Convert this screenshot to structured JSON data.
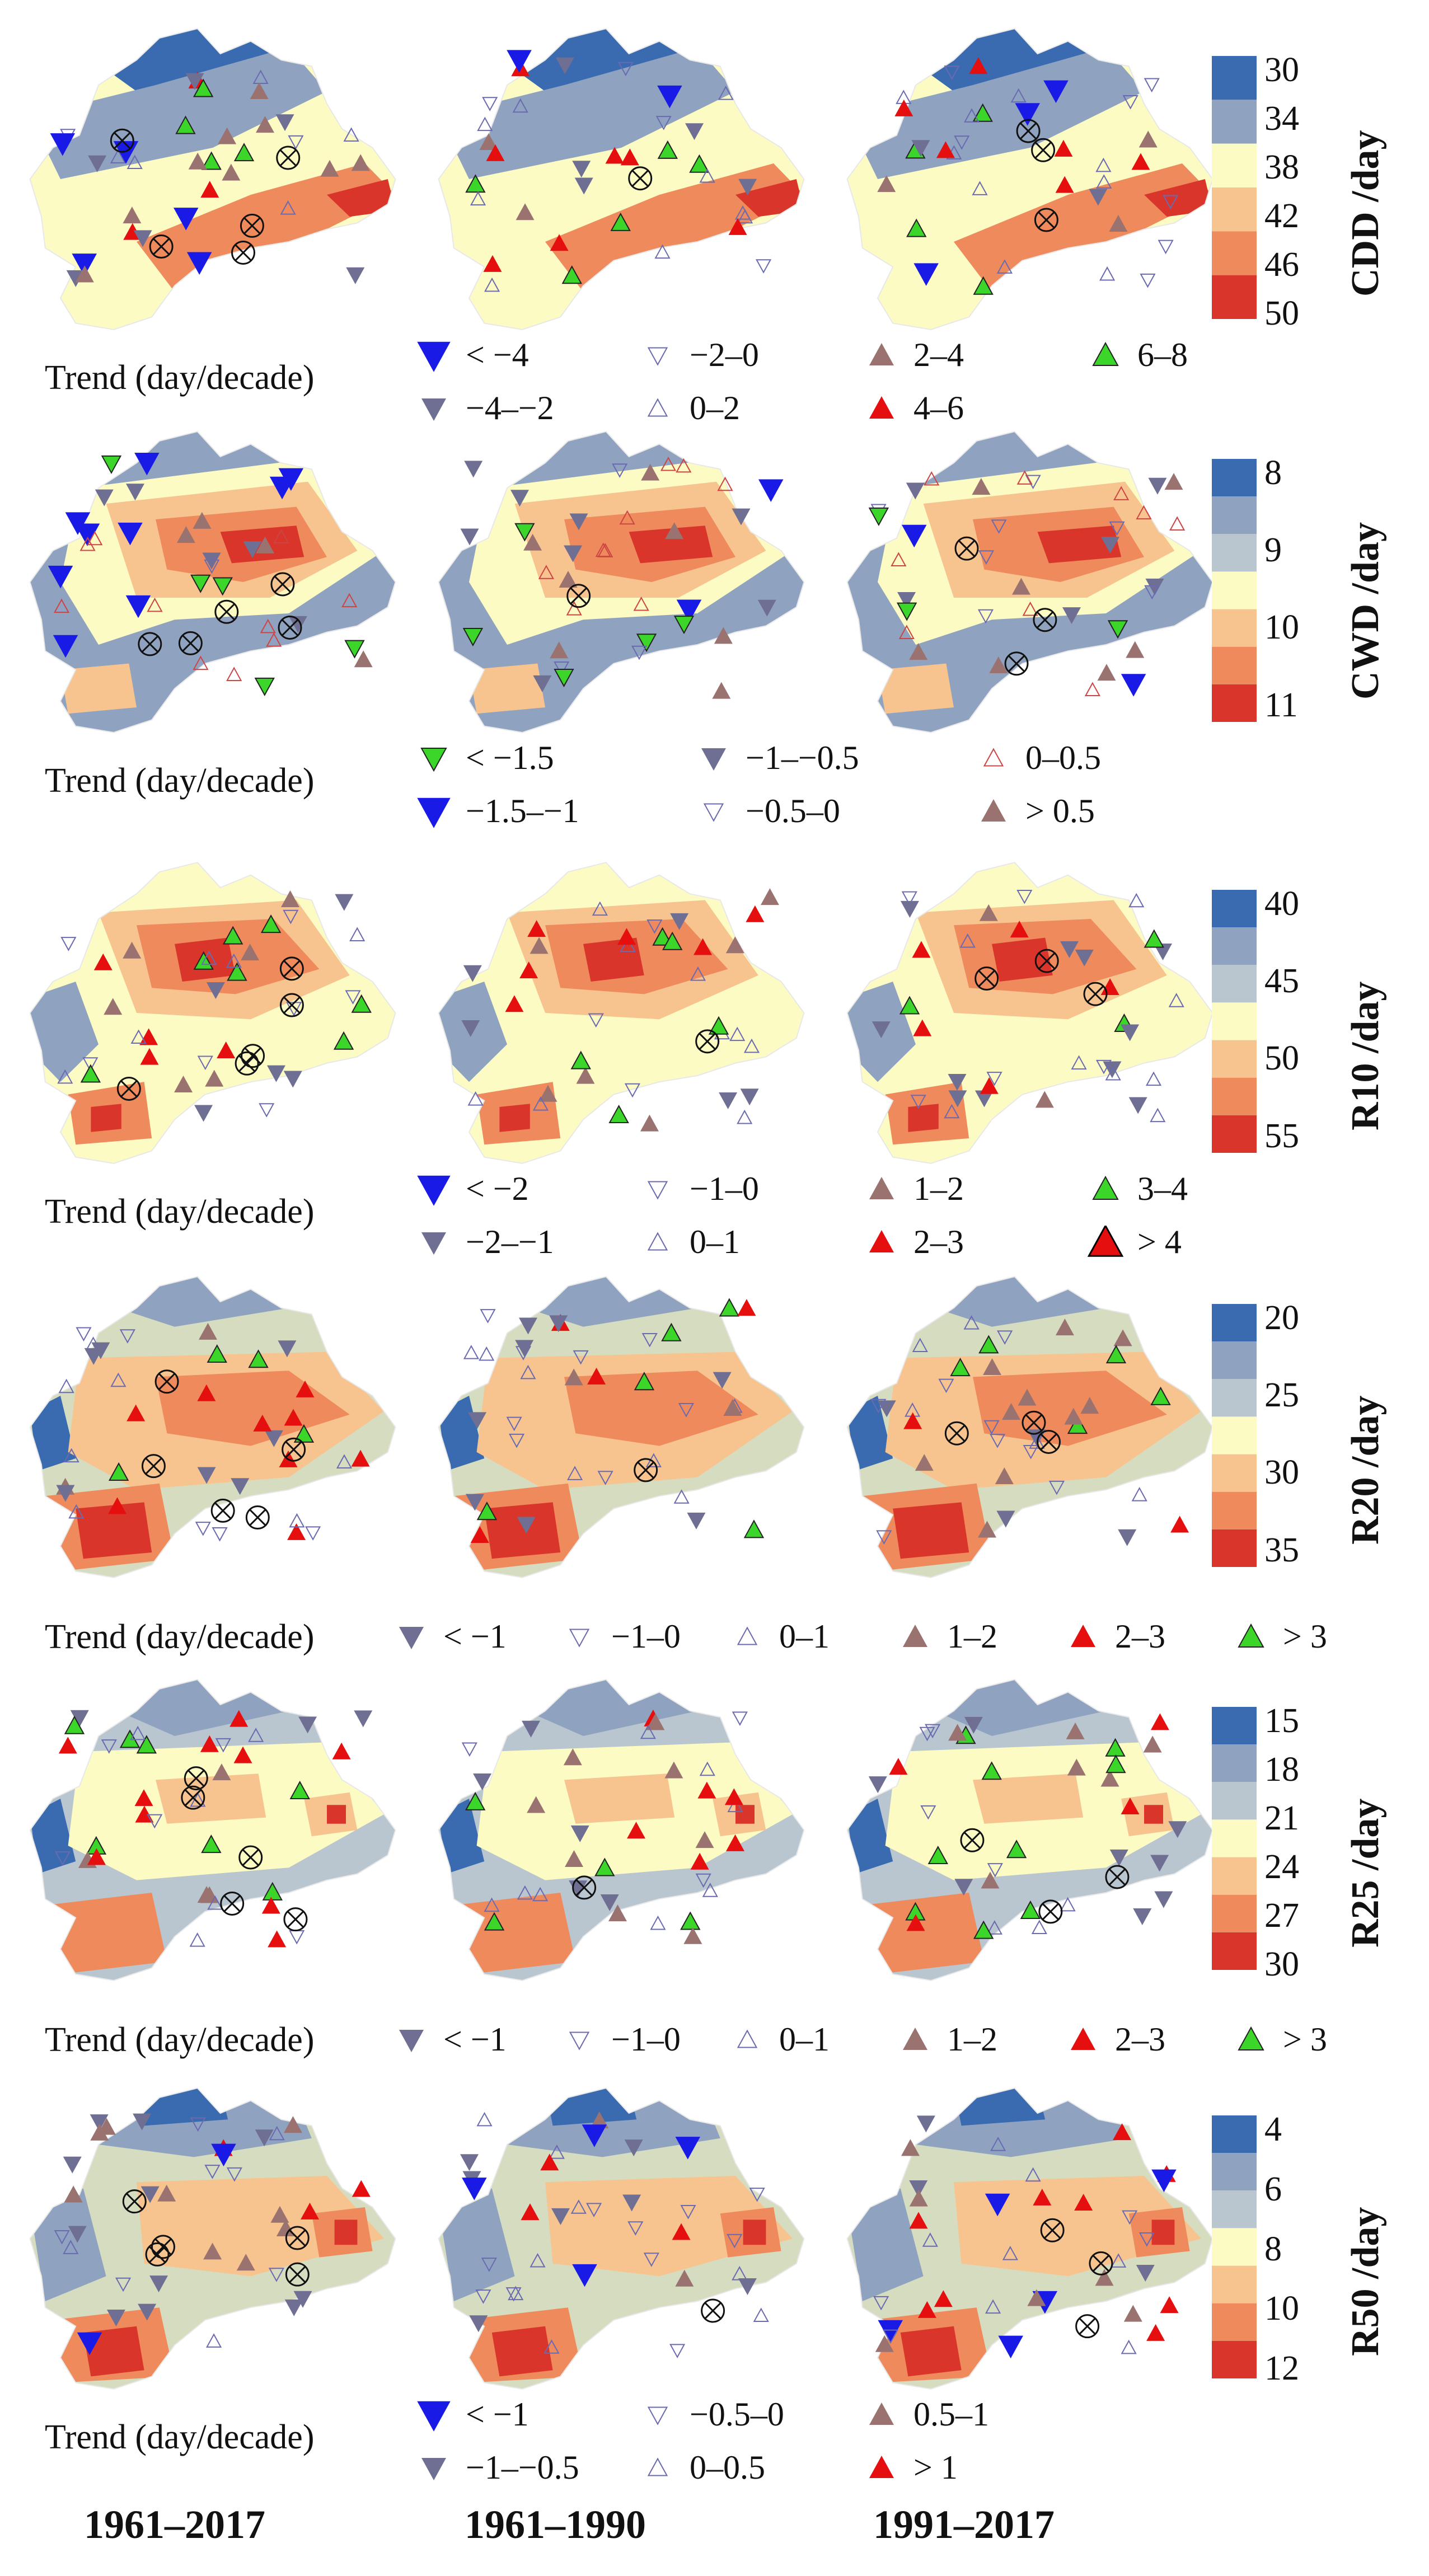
{
  "rows": [
    {
      "index": "CDD /day",
      "colorbar_ticks": [
        "30",
        "34",
        "38",
        "42",
        "46",
        "50"
      ],
      "trend_label": "Trend (day/decade)",
      "legend": [
        {
          "symbol": "big-down-blue",
          "label": "< −4"
        },
        {
          "symbol": "small-down-open",
          "label": "−2–0"
        },
        {
          "symbol": "up-brown",
          "label": "2–4"
        },
        {
          "symbol": "up-green",
          "label": "6–8"
        },
        {
          "symbol": "down-grey",
          "label": "−4–−2"
        },
        {
          "symbol": "small-up-open",
          "label": "0–2"
        },
        {
          "symbol": "up-red",
          "label": "4–6"
        }
      ]
    },
    {
      "index": "CWD /day",
      "colorbar_ticks": [
        "8",
        "9",
        "10",
        "11"
      ],
      "trend_label": "Trend (day/decade)",
      "legend": [
        {
          "symbol": "down-green",
          "label": "< −1.5"
        },
        {
          "symbol": "down-grey",
          "label": "−1–−0.5"
        },
        {
          "symbol": "small-up-open-red",
          "label": "0–0.5"
        },
        {
          "symbol": "big-down-blue",
          "label": "−1.5–−1"
        },
        {
          "symbol": "small-down-open",
          "label": "−0.5–0"
        },
        {
          "symbol": "up-brown",
          "label": "> 0.5"
        }
      ]
    },
    {
      "index": "R10 /day",
      "colorbar_ticks": [
        "40",
        "45",
        "50",
        "55"
      ],
      "trend_label": "Trend (day/decade)",
      "legend": [
        {
          "symbol": "big-down-blue",
          "label": "< −2"
        },
        {
          "symbol": "small-down-open",
          "label": "−1–0"
        },
        {
          "symbol": "up-brown",
          "label": "1–2"
        },
        {
          "symbol": "up-green",
          "label": "3–4"
        },
        {
          "symbol": "down-grey",
          "label": "−2–−1"
        },
        {
          "symbol": "small-up-open",
          "label": "0–1"
        },
        {
          "symbol": "up-red",
          "label": "2–3"
        },
        {
          "symbol": "big-up-red",
          "label": "> 4"
        }
      ]
    },
    {
      "index": "R20 /day",
      "colorbar_ticks": [
        "20",
        "25",
        "30",
        "35"
      ],
      "trend_label": "Trend (day/decade)",
      "legend": [
        {
          "symbol": "down-grey",
          "label": "< −1"
        },
        {
          "symbol": "small-down-open",
          "label": "−1–0"
        },
        {
          "symbol": "small-up-open",
          "label": "0–1"
        },
        {
          "symbol": "up-brown",
          "label": "1–2"
        },
        {
          "symbol": "up-red",
          "label": "2–3"
        },
        {
          "symbol": "up-green",
          "label": "> 3"
        }
      ]
    },
    {
      "index": "R25 /day",
      "colorbar_ticks": [
        "15",
        "18",
        "21",
        "24",
        "27",
        "30"
      ],
      "trend_label": "Trend (day/decade)",
      "legend": [
        {
          "symbol": "down-grey",
          "label": "< −1"
        },
        {
          "symbol": "small-down-open",
          "label": "−1–0"
        },
        {
          "symbol": "small-up-open",
          "label": "0–1"
        },
        {
          "symbol": "up-brown",
          "label": "1–2"
        },
        {
          "symbol": "up-red",
          "label": "2–3"
        },
        {
          "symbol": "up-green",
          "label": "> 3"
        }
      ]
    },
    {
      "index": "R50 /day",
      "colorbar_ticks": [
        "4",
        "6",
        "8",
        "10",
        "12"
      ],
      "trend_label": "Trend (day/decade)",
      "legend": [
        {
          "symbol": "big-down-blue",
          "label": "< −1"
        },
        {
          "symbol": "small-down-open",
          "label": "−0.5–0"
        },
        {
          "symbol": "up-brown",
          "label": "0.5–1"
        },
        {
          "symbol": "down-grey",
          "label": "−1–−0.5"
        },
        {
          "symbol": "small-up-open",
          "label": "0–0.5"
        },
        {
          "symbol": "up-red",
          "label": "> 1"
        }
      ]
    }
  ],
  "periods": [
    "1961–2017",
    "1961–1990",
    "1991–2017"
  ],
  "palette": {
    "dark_blue": "#3a6bb0",
    "grey_blue": "#8fa3c0",
    "light_blue_grey": "#b9c6cf",
    "pale_sage": "#d6dcc0",
    "cream": "#fdfbc4",
    "light_orange": "#f7c48f",
    "orange": "#ee8a5c",
    "red": "#d9352a",
    "marker_blue": "#1a1ae6",
    "marker_grey": "#6e6f92",
    "marker_brown": "#9a7370",
    "marker_red": "#e60f0f",
    "marker_green": "#3cd62a"
  }
}
